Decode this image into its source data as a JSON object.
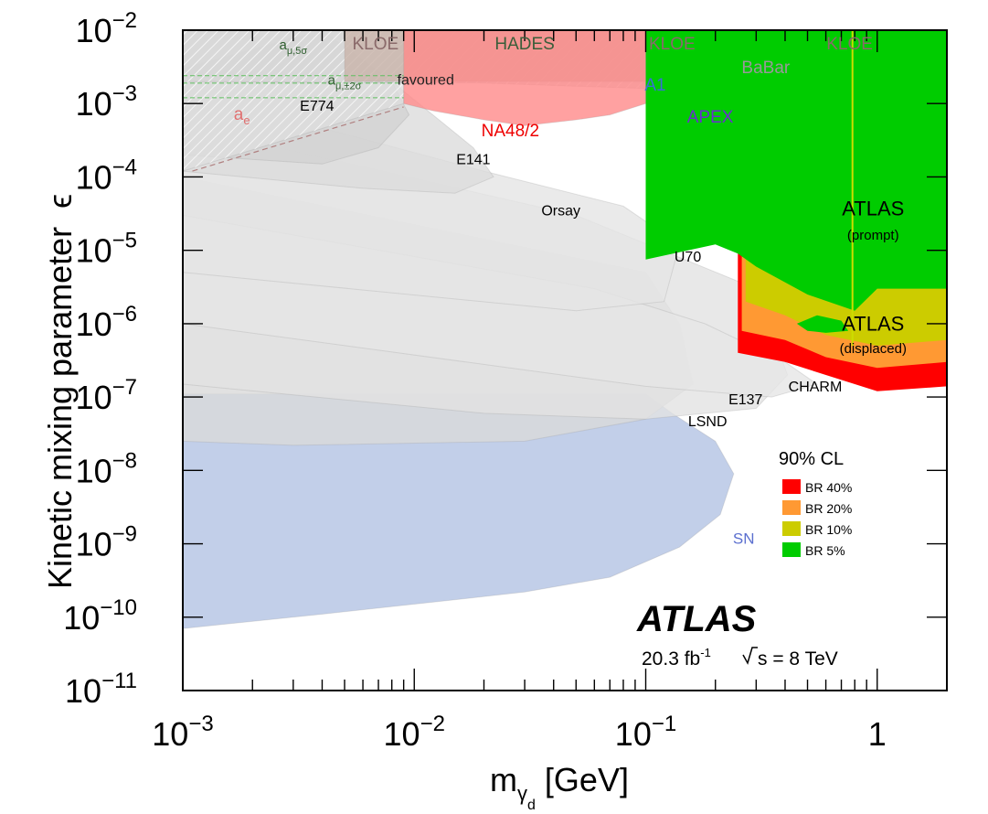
{
  "chart_data": {
    "type": "area",
    "xlabel": "m",
    "xlabel_sub": "γ",
    "xlabel_subsub": "d",
    "xlabel_unit": "[GeV]",
    "ylabel": "Kinetic mixing parameter",
    "ylabel_symbol": "ϵ",
    "x_scale": "log",
    "y_scale": "log",
    "xlim": [
      0.001,
      2.0
    ],
    "ylim": [
      1e-11,
      0.01
    ],
    "x_ticks": [
      {
        "value": 0.001,
        "base": "10",
        "exp": "−3"
      },
      {
        "value": 0.01,
        "base": "10",
        "exp": "−2"
      },
      {
        "value": 0.1,
        "base": "10",
        "exp": "−1"
      },
      {
        "value": 1,
        "base": "1",
        "exp": ""
      }
    ],
    "y_ticks": [
      {
        "value": 0.01,
        "base": "10",
        "exp": "−2"
      },
      {
        "value": 0.001,
        "base": "10",
        "exp": "−3"
      },
      {
        "value": 0.0001,
        "base": "10",
        "exp": "−4"
      },
      {
        "value": 1e-05,
        "base": "10",
        "exp": "−5"
      },
      {
        "value": 1e-06,
        "base": "10",
        "exp": "−6"
      },
      {
        "value": 1e-07,
        "base": "10",
        "exp": "−7"
      },
      {
        "value": 1e-08,
        "base": "10",
        "exp": "−8"
      },
      {
        "value": 1e-09,
        "base": "10",
        "exp": "−9"
      },
      {
        "value": 1e-10,
        "base": "10",
        "exp": "−10"
      },
      {
        "value": 1e-11,
        "base": "10",
        "exp": "−11"
      }
    ],
    "experiment": "ATLAS",
    "luminosity": "20.3 fb",
    "luminosity_exp": "-1",
    "energy": "s = 8 TeV",
    "legend": {
      "title": "90% CL",
      "placement": "right-middle",
      "items": [
        {
          "label": "BR 40%",
          "color": "#ff0000"
        },
        {
          "label": "BR 20%",
          "color": "#ff9933"
        },
        {
          "label": "BR 10%",
          "color": "#cccc00"
        },
        {
          "label": "BR  5%",
          "color": "#00cc00"
        }
      ]
    },
    "regions": [
      {
        "name": "SN",
        "color": "#b3c3e3",
        "points": [
          [
            0.001,
            1.1e-07
          ],
          [
            0.1,
            1.1e-07
          ],
          [
            0.13,
            6e-08
          ],
          [
            0.2,
            2.5e-08
          ],
          [
            0.24,
            9e-09
          ],
          [
            0.21,
            2.5e-09
          ],
          [
            0.14,
            9e-10
          ],
          [
            0.07,
            3.5e-10
          ],
          [
            0.03,
            2.2e-10
          ],
          [
            0.012,
            1.6e-10
          ],
          [
            0.004,
            1.1e-10
          ],
          [
            0.001,
            7e-11
          ]
        ]
      },
      {
        "name": "LSND",
        "color": "#d9d9d9",
        "points": [
          [
            0.001,
            0.0001
          ],
          [
            0.1,
            5e-06
          ],
          [
            0.14,
            1e-06
          ],
          [
            0.16,
            1.5e-07
          ],
          [
            0.1,
            5e-08
          ],
          [
            0.03,
            2.5e-08
          ],
          [
            0.003,
            2.2e-08
          ],
          [
            0.001,
            2.5e-08
          ]
        ]
      },
      {
        "name": "E137",
        "color": "#e2e2e2",
        "points": [
          [
            0.001,
            0.0005
          ],
          [
            0.05,
            3e-05
          ],
          [
            0.3,
            3e-06
          ],
          [
            0.41,
            2e-07
          ],
          [
            0.3,
            7e-08
          ],
          [
            0.1,
            5e-08
          ],
          [
            0.02,
            6e-08
          ],
          [
            0.001,
            1.5e-07
          ]
        ]
      },
      {
        "name": "CHARM",
        "color": "#e6e6e6",
        "points": [
          [
            0.001,
            1e-06
          ],
          [
            0.1,
            1.4e-07
          ],
          [
            0.35,
            1e-07
          ],
          [
            0.55,
            1.5e-07
          ],
          [
            0.4,
            3e-07
          ],
          [
            0.18,
            1e-06
          ],
          [
            0.06,
            3e-06
          ],
          [
            0.001,
            3e-05
          ]
        ]
      },
      {
        "name": "Orsay",
        "color": "#e5e5e5",
        "points": [
          [
            0.001,
            0.0015
          ],
          [
            0.02,
            0.00012
          ],
          [
            0.08,
            4e-05
          ],
          [
            0.14,
            1.2e-05
          ],
          [
            0.12,
            2e-06
          ],
          [
            0.05,
            1.5e-06
          ],
          [
            0.001,
            5e-06
          ]
        ]
      },
      {
        "name": "E141",
        "color": "#dcdcdc",
        "points": [
          [
            0.001,
            0.003
          ],
          [
            0.008,
            0.002
          ],
          [
            0.018,
            0.00025
          ],
          [
            0.022,
            0.0001
          ],
          [
            0.015,
            6e-05
          ],
          [
            0.006,
            7e-05
          ],
          [
            0.001,
            0.00012
          ]
        ]
      },
      {
        "name": "E774",
        "color": "#d2d2d2",
        "points": [
          [
            0.001,
            0.003
          ],
          [
            0.004,
            0.01
          ],
          [
            0.008,
            0.002
          ],
          [
            0.0095,
            0.0007
          ],
          [
            0.007,
            0.00025
          ],
          [
            0.004,
            0.00015
          ],
          [
            0.001,
            0.0002
          ]
        ]
      },
      {
        "name": "a_e",
        "color": "#dddddd",
        "points": [
          [
            0.001,
            0.01
          ],
          [
            0.009,
            0.01
          ],
          [
            0.009,
            0.001
          ],
          [
            0.001,
            0.00012
          ]
        ]
      },
      {
        "name": "a_mu_5sigma",
        "color": "#d6d6d6",
        "points": [
          [
            0.001,
            0.01
          ],
          [
            0.1,
            0.01
          ],
          [
            0.1,
            0.0016
          ],
          [
            0.02,
            0.0019
          ],
          [
            0.001,
            0.002
          ]
        ]
      },
      {
        "name": "KLOE_HADES",
        "color": "#c9b4aa",
        "points": [
          [
            0.005,
            0.01
          ],
          [
            0.1,
            0.01
          ],
          [
            0.1,
            0.002
          ],
          [
            0.005,
            0.002
          ]
        ]
      },
      {
        "name": "BaBar",
        "color": "#c8c8c8",
        "points": [
          [
            0.1,
            0.01
          ],
          [
            2,
            0.01
          ],
          [
            2,
            0.0006
          ],
          [
            0.1,
            0.001
          ]
        ]
      },
      {
        "name": "ATLAS_40",
        "color": "#ff0000",
        "points": [
          [
            0.1,
            0.01
          ],
          [
            2,
            0.01
          ],
          [
            2,
            1.4e-07
          ],
          [
            1,
            1.2e-07
          ],
          [
            0.6,
            2e-07
          ],
          [
            0.4,
            3e-07
          ],
          [
            0.25,
            4e-07
          ],
          [
            0.25,
            1.3e-05
          ],
          [
            0.2,
            1.8e-05
          ],
          [
            0.1,
            1.1e-05
          ]
        ]
      },
      {
        "name": "ATLAS_20",
        "color": "#ff9933",
        "points": [
          [
            0.1,
            0.01
          ],
          [
            2,
            0.01
          ],
          [
            2,
            3e-07
          ],
          [
            1,
            2.5e-07
          ],
          [
            0.6,
            3.5e-07
          ],
          [
            0.4,
            6e-07
          ],
          [
            0.26,
            8e-07
          ],
          [
            0.26,
            1.2e-05
          ],
          [
            0.2,
            1.5e-05
          ],
          [
            0.1,
            9e-06
          ]
        ]
      },
      {
        "name": "ATLAS_10",
        "color": "#cccc00",
        "points": [
          [
            0.1,
            0.01
          ],
          [
            2,
            0.01
          ],
          [
            2,
            6e-07
          ],
          [
            1,
            5e-07
          ],
          [
            0.6,
            7e-07
          ],
          [
            0.4,
            1.3e-06
          ],
          [
            0.27,
            2e-06
          ],
          [
            0.27,
            1e-05
          ],
          [
            0.2,
            1.3e-05
          ],
          [
            0.1,
            8e-06
          ]
        ]
      },
      {
        "name": "ATLAS_5",
        "color": "#00cc00",
        "points": [
          [
            0.1,
            0.01
          ],
          [
            2,
            0.01
          ],
          [
            2,
            3e-06
          ],
          [
            1,
            3e-06
          ],
          [
            0.8,
            1.5e-06
          ],
          [
            0.5,
            2.5e-06
          ],
          [
            0.3,
            6e-06
          ],
          [
            0.25,
            9e-06
          ],
          [
            0.2,
            1.2e-05
          ],
          [
            0.1,
            7.5e-06
          ]
        ]
      },
      {
        "name": "NA48_2",
        "color": "#ff8a8a",
        "points": [
          [
            0.009,
            0.01
          ],
          [
            0.1,
            0.01
          ],
          [
            0.1,
            0.001
          ],
          [
            0.07,
            0.0007
          ],
          [
            0.05,
            0.0006
          ],
          [
            0.03,
            0.0005
          ],
          [
            0.02,
            0.0006
          ],
          [
            0.012,
            0.0008
          ],
          [
            0.009,
            0.001
          ]
        ]
      }
    ],
    "region_labels": [
      {
        "text": "a",
        "sub": "μ,5σ",
        "x": 0.003,
        "y": 0.0055,
        "color": "#2e5e2e",
        "size": 15
      },
      {
        "text": "KLOE",
        "x": 0.0068,
        "y": 0.0055,
        "color": "#8a6a6a",
        "size": 19
      },
      {
        "text": "HADES",
        "x": 0.03,
        "y": 0.0055,
        "color": "#3a5e3a",
        "size": 19
      },
      {
        "text": "KLOE",
        "x": 0.13,
        "y": 0.0055,
        "color": "#8a6a6a",
        "size": 19
      },
      {
        "text": "KLOE",
        "x": 0.76,
        "y": 0.0055,
        "color": "#8a6a6a",
        "size": 19
      },
      {
        "text": "a",
        "sub": "μ,±2σ",
        "x": 0.005,
        "y": 0.0018,
        "color": "#2e5e2e",
        "size": 15
      },
      {
        "text": "favoured",
        "x": 0.0112,
        "y": 0.0018,
        "color": "#222222",
        "size": 16
      },
      {
        "text": "BaBar",
        "x": 0.33,
        "y": 0.0026,
        "color": "#999999",
        "size": 19
      },
      {
        "text": "A1",
        "x": 0.11,
        "y": 0.0015,
        "color": "#3b6dd6",
        "size": 19
      },
      {
        "text": "E774",
        "x": 0.0038,
        "y": 0.0008,
        "color": "#000000",
        "size": 16
      },
      {
        "text": "a",
        "sub": "e",
        "x": 0.0018,
        "y": 0.0006,
        "color": "#e07070",
        "size": 19
      },
      {
        "text": "APEX",
        "x": 0.19,
        "y": 0.00055,
        "color": "#6a2fcf",
        "size": 19
      },
      {
        "text": "NA48/2",
        "x": 0.026,
        "y": 0.00036,
        "color": "#ee0000",
        "size": 19
      },
      {
        "text": "E141",
        "x": 0.018,
        "y": 0.00015,
        "color": "#000000",
        "size": 16
      },
      {
        "text": "Orsay",
        "x": 0.043,
        "y": 3e-05,
        "color": "#000000",
        "size": 16
      },
      {
        "text": "ATLAS",
        "x": 0.96,
        "y": 3e-05,
        "color": "#000000",
        "size": 22
      },
      {
        "text": "(prompt)",
        "x": 0.96,
        "y": 1.4e-05,
        "color": "#000000",
        "size": 15
      },
      {
        "text": "U70",
        "x": 0.152,
        "y": 7e-06,
        "color": "#000000",
        "size": 16
      },
      {
        "text": "ATLAS",
        "x": 0.96,
        "y": 8e-07,
        "color": "#000000",
        "size": 22
      },
      {
        "text": "(displaced)",
        "x": 0.96,
        "y": 4e-07,
        "color": "#000000",
        "size": 15
      },
      {
        "text": "CHARM",
        "x": 0.54,
        "y": 1.2e-07,
        "color": "#000000",
        "size": 16
      },
      {
        "text": "E137",
        "x": 0.27,
        "y": 8e-08,
        "color": "#000000",
        "size": 16
      },
      {
        "text": "LSND",
        "x": 0.185,
        "y": 4e-08,
        "color": "#000000",
        "size": 16
      },
      {
        "text": "SN",
        "x": 0.265,
        "y": 1e-09,
        "color": "#5b6fcf",
        "size": 17
      }
    ]
  }
}
